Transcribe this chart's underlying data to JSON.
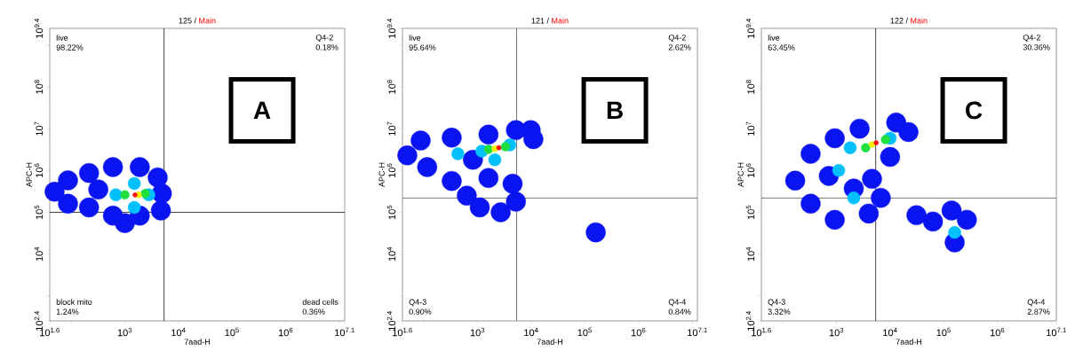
{
  "chart_data": [
    {
      "type": "scatter",
      "title": "125 /",
      "subtitle": "Main",
      "xlabel": "7aad-H",
      "ylabel": "APC-H",
      "log": "xy",
      "marker": "circle",
      "xlim": [
        39.81,
        12589254
      ],
      "ylim": [
        251.2,
        2511886432
      ],
      "xticks": [
        {
          "value": 39.81,
          "label": "10$^{1.6}$"
        },
        {
          "value": 100,
          "label": null
        },
        {
          "value": 1000,
          "label": "10$^{3}$"
        },
        {
          "value": 10000,
          "label": "10$^{4}$"
        },
        {
          "value": 100000,
          "label": "10$^{5}$"
        },
        {
          "value": 1000000,
          "label": "10$^{6}$"
        },
        {
          "value": 10000000,
          "label": null
        },
        {
          "value": 12589254,
          "label": "10$^{7.1}$"
        }
      ],
      "yticks": [
        {
          "value": 251.2,
          "label": "10$^{2.4}$"
        },
        {
          "value": 1000,
          "label": null
        },
        {
          "value": 10000,
          "label": "10$^{4}$"
        },
        {
          "value": 100000,
          "label": "10$^{5}$"
        },
        {
          "value": 1000000,
          "label": "10$^{6}$"
        },
        {
          "value": 10000000,
          "label": "10$^{7}$"
        },
        {
          "value": 100000000,
          "label": "10$^{8}$"
        },
        {
          "value": 1000000000,
          "label": null
        },
        {
          "value": 2511886432,
          "label": "10$^{9.4}$"
        }
      ],
      "ref_lines": [
        {
          "axis": "x",
          "value": 5400
        },
        {
          "axis": "y",
          "value": 100000
        }
      ],
      "annotations": [
        "live",
        "98.22%",
        "Q4-2",
        "0.18%",
        "block mito",
        "1.24%",
        "dead cells",
        "0.36%",
        "A"
      ],
      "series": [
        {
          "color": "#0a14f0",
          "x": [
            49,
            87,
            87,
            215,
            215,
            600,
            600,
            1000,
            1900,
            1900,
            4100,
            4700,
            4900,
            320
          ],
          "values": [
            310000,
            580000,
            160000,
            870000,
            130000,
            1200000,
            83000,
            55000,
            1200000,
            83000,
            680000,
            110000,
            280000,
            350000
          ]
        },
        {
          "color": "#00c0ff",
          "x": [
            680,
            2800,
            1500,
            1500
          ],
          "values": [
            260000,
            260000,
            490000,
            130000
          ]
        },
        {
          "color": "#20e040",
          "x": [
            1000,
            2400
          ],
          "values": [
            260000,
            280000
          ]
        },
        {
          "color": "#f0f000",
          "x": [
            1800
          ],
          "values": [
            260000
          ]
        },
        {
          "color": "#ff1010",
          "x": [
            1550
          ],
          "values": [
            260000
          ]
        }
      ]
    },
    {
      "type": "scatter",
      "title": "121 /",
      "subtitle": "Main",
      "xlabel": "7aad-H",
      "ylabel": "APC-H",
      "log": "xy",
      "marker": "circle",
      "xlim": [
        39.81,
        12589254
      ],
      "ylim": [
        251.2,
        2511886432
      ],
      "xticks": [
        {
          "value": 39.81,
          "label": "10$^{1.6}$"
        },
        {
          "value": 100,
          "label": null
        },
        {
          "value": 1000,
          "label": "10$^{3}$"
        },
        {
          "value": 10000,
          "label": "10$^{4}$"
        },
        {
          "value": 100000,
          "label": "10$^{5}$"
        },
        {
          "value": 1000000,
          "label": "10$^{6}$"
        },
        {
          "value": 10000000,
          "label": null
        },
        {
          "value": 12589254,
          "label": "10$^{7.1}$"
        }
      ],
      "yticks": [
        {
          "value": 251.2,
          "label": "10$^{2.4}$"
        },
        {
          "value": 1000,
          "label": null
        },
        {
          "value": 10000,
          "label": "10$^{4}$"
        },
        {
          "value": 100000,
          "label": "10$^{5}$"
        },
        {
          "value": 1000000,
          "label": "10$^{6}$"
        },
        {
          "value": 10000000,
          "label": "10$^{7}$"
        },
        {
          "value": 100000000,
          "label": "10$^{8}$"
        },
        {
          "value": 1000000000,
          "label": null
        },
        {
          "value": 2511886432,
          "label": "10$^{9.4}$"
        }
      ],
      "ref_lines": [
        {
          "axis": "x",
          "value": 5400
        },
        {
          "axis": "y",
          "value": 220000
        }
      ],
      "annotations": [
        "live",
        "95.64%",
        "Q4-2",
        "2.62%",
        "Q4-3",
        "0.90%",
        "Q4-4",
        "0.84%",
        "B"
      ],
      "series": [
        {
          "color": "#0a14f0",
          "x": [
            49,
            87,
            115,
            330,
            330,
            630,
            1100,
            2700,
            5200,
            4500,
            5200,
            9800,
            11000,
            1600,
            1600,
            820,
            160000
          ],
          "values": [
            2300000,
            5200000,
            1200000,
            6100000,
            560000,
            250000,
            130000,
            100000,
            180000,
            480000,
            9200000,
            9200000,
            5600000,
            7200000,
            660000,
            1800000,
            33000
          ]
        },
        {
          "color": "#00c0ff",
          "x": [
            1200,
            4000,
            2100,
            430
          ],
          "values": [
            2900000,
            4100000,
            1800000,
            2500000
          ]
        },
        {
          "color": "#20e040",
          "x": [
            1600,
            3300
          ],
          "values": [
            3200000,
            3700000
          ]
        },
        {
          "color": "#f0f000",
          "x": [
            2100
          ],
          "values": [
            3300000
          ]
        },
        {
          "color": "#ff1010",
          "x": [
            2500
          ],
          "values": [
            3500000
          ]
        }
      ]
    },
    {
      "type": "scatter",
      "title": "122 /",
      "subtitle": "Main",
      "xlabel": "7aad-H",
      "ylabel": "APC-H",
      "log": "xy",
      "marker": "circle",
      "xlim": [
        39.81,
        12589254
      ],
      "ylim": [
        251.2,
        2511886432
      ],
      "xticks": [
        {
          "value": 39.81,
          "label": "10$^{1.6}$"
        },
        {
          "value": 100,
          "label": null
        },
        {
          "value": 1000,
          "label": "10$^{3}$"
        },
        {
          "value": 10000,
          "label": "10$^{4}$"
        },
        {
          "value": 100000,
          "label": "10$^{5}$"
        },
        {
          "value": 1000000,
          "label": "10$^{6}$"
        },
        {
          "value": 10000000,
          "label": null
        },
        {
          "value": 12589254,
          "label": "10$^{7.1}$"
        }
      ],
      "yticks": [
        {
          "value": 251.2,
          "label": "10$^{2.4}$"
        },
        {
          "value": 1000,
          "label": null
        },
        {
          "value": 10000,
          "label": "10$^{4}$"
        },
        {
          "value": 100000,
          "label": "10$^{5}$"
        },
        {
          "value": 1000000,
          "label": "10$^{6}$"
        },
        {
          "value": 10000000,
          "label": "10$^{7}$"
        },
        {
          "value": 100000000,
          "label": "10$^{8}$"
        },
        {
          "value": 1000000000,
          "label": null
        },
        {
          "value": 2511886432,
          "label": "10$^{9.4}$"
        }
      ],
      "ref_lines": [
        {
          "axis": "x",
          "value": 5400
        },
        {
          "axis": "y",
          "value": 220000
        }
      ],
      "annotations": [
        "live",
        "63.45%",
        "Q4-2",
        "30.36%",
        "Q4-3",
        "3.32%",
        "Q4-4",
        "2.87%",
        "C"
      ],
      "series": [
        {
          "color": "#0a14f0",
          "x": [
            170,
            330,
            330,
            930,
            930,
            2100,
            4000,
            6700,
            2700,
            13000,
            22000,
            10000,
            720,
            4600,
            31000,
            63000,
            140000,
            270000,
            160000
          ],
          "values": [
            570000,
            2500000,
            160000,
            5900000,
            66000,
            370000,
            93000,
            220000,
            10000000,
            14000000,
            8300000,
            2100000,
            740000,
            630000,
            85000,
            60000,
            110000,
            66000,
            19000
          ]
        },
        {
          "color": "#00c0ff",
          "x": [
            1100,
            1800,
            10000,
            2100,
            160000
          ],
          "values": [
            1000000,
            3500000,
            5900000,
            220000,
            33000
          ]
        },
        {
          "color": "#20e040",
          "x": [
            3500,
            8200
          ],
          "values": [
            3500000,
            5500000
          ]
        },
        {
          "color": "#f0f000",
          "x": [
            4600
          ],
          "values": [
            4200000
          ]
        },
        {
          "color": "#ff1010",
          "x": [
            5500
          ],
          "values": [
            4600000
          ]
        }
      ]
    }
  ]
}
